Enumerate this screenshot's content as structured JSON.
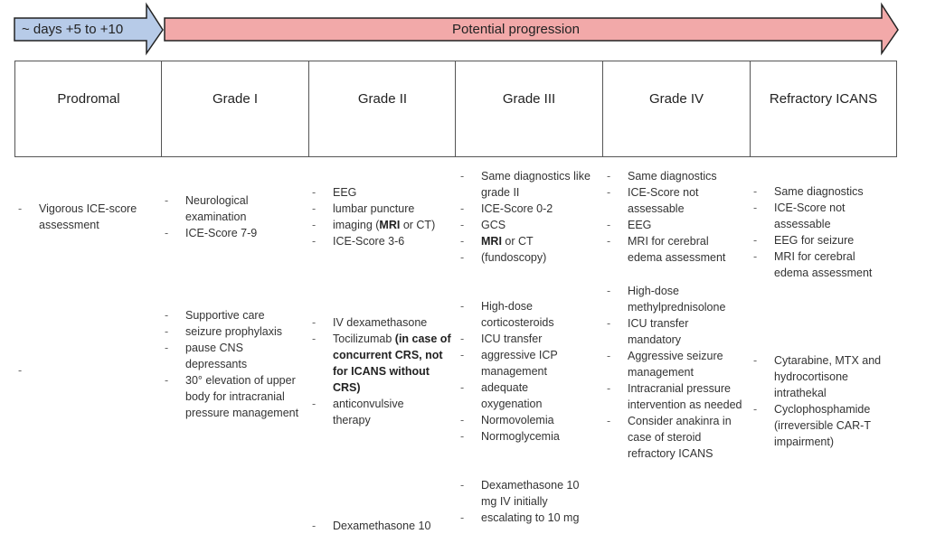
{
  "timeline": {
    "onset_label": "~ days +5 to +10",
    "progression_label": "Potential progression",
    "colors": {
      "onset": "#b7cbe8",
      "progression": "#f2a9a9"
    }
  },
  "columns": [
    {
      "header": "Prodromal",
      "diagnostics": [
        "Vigorous ICE-score assessment"
      ],
      "treatment": [
        ""
      ]
    },
    {
      "header": "Grade I",
      "diagnostics": [
        "Neurological examination",
        "ICE-Score 7-9"
      ],
      "treatment": [
        "Supportive care",
        "seizure prophylaxis",
        "pause CNS depressants",
        "30° elevation of upper body for intracranial pressure management"
      ]
    },
    {
      "header": "Grade II",
      "diagnostics": [
        "EEG",
        "lumbar puncture",
        "imaging (",
        "MRI",
        " or CT)",
        "ICE-Score 3-6"
      ],
      "treatment": [
        "IV dexamethasone",
        "Tocilizumab ",
        "(in case of concurrent CRS, not for ICANS without CRS)",
        "anticonvulsive therapy"
      ],
      "steroid_dosing": [
        "Dexamethasone 10"
      ]
    },
    {
      "header": "Grade III",
      "diagnostics": [
        "Same diagnostics like grade II",
        "ICE-Score 0-2",
        "GCS",
        "MRI",
        " or CT",
        "(fundoscopy)"
      ],
      "treatment": [
        "High-dose corticosteroids",
        "ICU transfer",
        "aggressive ICP management",
        "adequate oxygenation",
        "Normovolemia",
        "Normoglycemia"
      ],
      "steroid_dosing": [
        "Dexamethasone 10 mg IV initially",
        "escalating to 10 mg"
      ]
    },
    {
      "header": "Grade IV",
      "diagnostics": [
        "Same diagnostics",
        "ICE-Score not assessable",
        "EEG",
        "MRI for cerebral edema assessment"
      ],
      "treatment": [
        "High-dose methylprednisolone",
        "ICU transfer mandatory",
        "Aggressive seizure management",
        "Intracranial pressure intervention as needed",
        "Consider anakinra in case of steroid refractory ICANS"
      ]
    },
    {
      "header": "Refractory ICANS",
      "diagnostics": [
        "Same diagnostics",
        "ICE-Score not assessable",
        "EEG for seizure",
        "MRI for cerebral edema assessment"
      ],
      "treatment": [
        "Cytarabine, MTX and hydrocortisone intrathekal",
        "Cyclophosphamide (irreversible CAR-T impairment)"
      ]
    }
  ]
}
